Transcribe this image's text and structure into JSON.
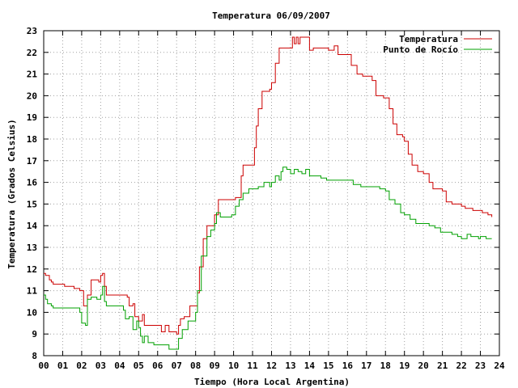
{
  "chart_data": {
    "type": "line",
    "title": "Temperatura 06/09/2007",
    "xlabel": "Tiempo (Hora Local Argentina)",
    "ylabel": "Temperatura (Grados Celsius)",
    "xlim": [
      0,
      24
    ],
    "ylim": [
      8,
      23
    ],
    "x_ticks": [
      "00",
      "01",
      "02",
      "03",
      "04",
      "05",
      "06",
      "07",
      "08",
      "09",
      "10",
      "11",
      "12",
      "13",
      "14",
      "15",
      "16",
      "17",
      "18",
      "19",
      "20",
      "21",
      "22",
      "23",
      "24"
    ],
    "y_ticks": [
      "8",
      "9",
      "10",
      "11",
      "12",
      "13",
      "14",
      "15",
      "16",
      "17",
      "18",
      "19",
      "20",
      "21",
      "22",
      "23"
    ],
    "grid": true,
    "legend_position": "top-right",
    "series": [
      {
        "name": "Temperatura",
        "color": "#cc0000",
        "x": [
          0.0,
          0.1,
          0.3,
          0.4,
          0.5,
          1.0,
          1.1,
          1.5,
          1.6,
          1.9,
          2.1,
          2.3,
          2.5,
          2.7,
          2.9,
          3.0,
          3.1,
          3.2,
          3.3,
          3.6,
          4.0,
          4.4,
          4.5,
          4.7,
          4.8,
          5.0,
          5.2,
          5.3,
          5.5,
          6.0,
          6.2,
          6.4,
          6.6,
          6.9,
          7.0,
          7.1,
          7.2,
          7.4,
          7.7,
          7.9,
          8.1,
          8.2,
          8.4,
          8.6,
          8.9,
          9.0,
          9.2,
          9.4,
          9.6,
          9.9,
          10.1,
          10.4,
          10.5,
          10.8,
          11.0,
          11.1,
          11.2,
          11.3,
          11.5,
          11.9,
          12.0,
          12.2,
          12.4,
          12.6,
          12.8,
          13.0,
          13.1,
          13.2,
          13.3,
          13.4,
          13.5,
          13.7,
          13.9,
          14.0,
          14.2,
          14.5,
          14.9,
          15.0,
          15.3,
          15.5,
          15.8,
          16.0,
          16.2,
          16.5,
          16.8,
          17.0,
          17.3,
          17.5,
          17.9,
          18.0,
          18.2,
          18.4,
          18.6,
          18.9,
          19.0,
          19.2,
          19.4,
          19.7,
          20.0,
          20.3,
          20.5,
          20.7,
          21.0,
          21.2,
          21.5,
          21.9,
          22.0,
          22.2,
          22.6,
          23.0,
          23.1,
          23.4,
          23.6
        ],
        "y": [
          11.8,
          11.7,
          11.5,
          11.4,
          11.3,
          11.3,
          11.2,
          11.2,
          11.1,
          11.0,
          10.3,
          10.8,
          11.5,
          11.5,
          11.4,
          11.7,
          11.8,
          11.2,
          10.8,
          10.8,
          10.8,
          10.7,
          10.3,
          10.4,
          9.8,
          9.6,
          9.9,
          9.4,
          9.4,
          9.4,
          9.1,
          9.4,
          9.1,
          9.1,
          9.0,
          9.4,
          9.7,
          9.8,
          10.3,
          10.3,
          10.9,
          12.1,
          13.4,
          14.0,
          14.0,
          14.5,
          15.2,
          15.2,
          15.2,
          15.2,
          15.3,
          16.3,
          16.8,
          16.8,
          16.8,
          17.6,
          18.6,
          19.4,
          20.2,
          20.3,
          20.6,
          21.5,
          22.2,
          22.2,
          22.2,
          22.2,
          22.7,
          22.4,
          22.7,
          22.4,
          22.7,
          22.7,
          22.7,
          22.1,
          22.2,
          22.2,
          22.2,
          22.1,
          22.3,
          21.9,
          21.9,
          21.9,
          21.4,
          21.0,
          20.9,
          20.9,
          20.7,
          20.0,
          19.9,
          19.9,
          19.4,
          18.7,
          18.2,
          18.1,
          17.9,
          17.3,
          16.8,
          16.5,
          16.4,
          16.0,
          15.7,
          15.7,
          15.6,
          15.1,
          15.0,
          15.0,
          14.9,
          14.8,
          14.7,
          14.7,
          14.6,
          14.5,
          14.4
        ]
      },
      {
        "name": "Punto de Rocío",
        "color": "#00a000",
        "x": [
          0.0,
          0.1,
          0.2,
          0.4,
          0.5,
          0.7,
          1.1,
          1.3,
          1.5,
          1.9,
          2.0,
          2.2,
          2.3,
          2.5,
          2.8,
          3.0,
          3.1,
          3.2,
          3.3,
          3.6,
          3.9,
          4.2,
          4.3,
          4.5,
          4.7,
          4.9,
          5.0,
          5.1,
          5.2,
          5.3,
          5.5,
          5.8,
          6.1,
          6.4,
          6.6,
          7.0,
          7.1,
          7.3,
          7.6,
          7.8,
          8.0,
          8.1,
          8.3,
          8.6,
          8.8,
          9.0,
          9.1,
          9.3,
          9.6,
          9.9,
          10.1,
          10.3,
          10.5,
          10.8,
          11.1,
          11.3,
          11.6,
          11.9,
          12.0,
          12.2,
          12.4,
          12.5,
          12.6,
          12.8,
          13.0,
          13.2,
          13.4,
          13.6,
          13.8,
          14.0,
          14.3,
          14.6,
          14.9,
          15.0,
          15.5,
          16.0,
          16.3,
          16.7,
          17.0,
          17.3,
          17.7,
          18.0,
          18.2,
          18.5,
          18.8,
          19.0,
          19.3,
          19.6,
          20.0,
          20.3,
          20.6,
          20.9,
          21.2,
          21.5,
          21.8,
          22.0,
          22.3,
          22.5,
          22.9,
          23.0,
          23.3,
          23.6
        ],
        "y": [
          10.8,
          10.6,
          10.4,
          10.3,
          10.2,
          10.2,
          10.2,
          10.2,
          10.2,
          10.0,
          9.5,
          9.4,
          10.6,
          10.7,
          10.6,
          10.8,
          11.2,
          10.5,
          10.3,
          10.3,
          10.3,
          10.1,
          9.7,
          9.8,
          9.2,
          9.6,
          9.3,
          8.9,
          8.6,
          8.9,
          8.6,
          8.5,
          8.5,
          8.5,
          8.3,
          8.3,
          8.8,
          9.2,
          9.6,
          9.6,
          10.0,
          11.0,
          12.6,
          13.5,
          13.8,
          14.1,
          14.6,
          14.4,
          14.4,
          14.5,
          14.9,
          15.2,
          15.5,
          15.7,
          15.7,
          15.8,
          16.0,
          15.8,
          16.0,
          16.3,
          16.1,
          16.5,
          16.7,
          16.6,
          16.4,
          16.6,
          16.5,
          16.4,
          16.6,
          16.3,
          16.3,
          16.2,
          16.1,
          16.1,
          16.1,
          16.1,
          15.9,
          15.8,
          15.8,
          15.8,
          15.7,
          15.6,
          15.2,
          15.0,
          14.6,
          14.5,
          14.3,
          14.1,
          14.1,
          14.0,
          13.9,
          13.7,
          13.7,
          13.6,
          13.5,
          13.4,
          13.6,
          13.5,
          13.4,
          13.5,
          13.4,
          13.4
        ]
      }
    ]
  }
}
